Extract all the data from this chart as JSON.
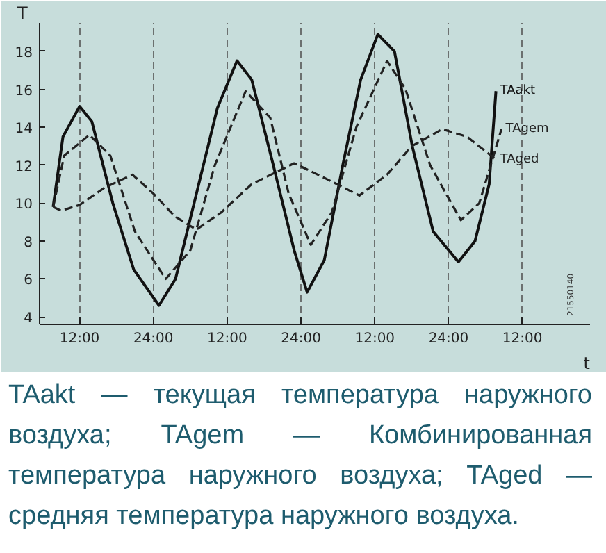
{
  "chart_data": {
    "type": "line",
    "xlabel": "t",
    "ylabel": "T",
    "x": [
      "2000-01-01T07:42",
      "2000-01-01T09:18",
      "2000-01-01T12:00",
      "2000-01-01T14:00",
      "2000-01-01T17:24",
      "2000-01-01T20:48",
      "2000-01-02T00:54",
      "2000-01-02T03:36",
      "2000-01-02T07:00",
      "2000-01-02T10:24",
      "2000-01-02T13:36",
      "2000-01-02T16:00",
      "2000-01-02T19:30",
      "2000-01-02T22:54",
      "2000-01-03T01:00",
      "2000-01-03T03:48",
      "2000-01-03T06:48",
      "2000-01-03T09:42",
      "2000-01-03T12:30",
      "2000-01-03T15:12",
      "2000-01-03T18:06",
      "2000-01-03T21:30",
      "2000-01-04T01:36",
      "2000-01-04T04:18",
      "2000-01-04T06:36",
      "2000-01-04T07:42"
    ],
    "series": [
      {
        "name": "TAakt",
        "color": "#111111",
        "line_style": "solid",
        "values": [
          9.8,
          13.5,
          15.1,
          14.3,
          10,
          6.5,
          4.6,
          6,
          10.5,
          15,
          17.5,
          16.5,
          12,
          7.5,
          5.3,
          7,
          12,
          16.5,
          18.9,
          18,
          13,
          8.5,
          6.9,
          8,
          11,
          15.9
        ]
      },
      {
        "name": "TAgem",
        "color": "#222222",
        "line_style": "dashed",
        "x": [
          "2000-01-01T07:42",
          "2000-01-01T09:30",
          "2000-01-01T13:36",
          "2000-01-01T17:00",
          "2000-01-01T21:00",
          "2000-01-02T02:00",
          "2000-01-02T06:00",
          "2000-01-02T10:00",
          "2000-01-02T15:00",
          "2000-01-02T19:00",
          "2000-01-02T22:00",
          "2000-01-03T01:36",
          "2000-01-03T05:00",
          "2000-01-03T09:00",
          "2000-01-03T14:00",
          "2000-01-03T17:00",
          "2000-01-03T21:00",
          "2000-01-04T02:00",
          "2000-01-04T05:00",
          "2000-01-04T08:36"
        ],
        "values": [
          9.8,
          12.5,
          13.6,
          12.5,
          8.5,
          6,
          7.5,
          12,
          15.9,
          14.5,
          10.5,
          7.8,
          9.5,
          14,
          17.5,
          16,
          12,
          9.1,
          10,
          13.9
        ]
      },
      {
        "name": "TAged",
        "color": "#222222",
        "line_style": "dashed",
        "x": [
          "2000-01-01T07:42",
          "2000-01-01T09:00",
          "2000-01-01T12:00",
          "2000-01-01T16:00",
          "2000-01-01T20:36",
          "2000-01-02T00:00",
          "2000-01-02T03:30",
          "2000-01-02T07:00",
          "2000-01-02T11:00",
          "2000-01-02T16:00",
          "2000-01-02T22:54",
          "2000-01-03T04:00",
          "2000-01-03T09:30",
          "2000-01-03T14:00",
          "2000-01-03T18:00",
          "2000-01-03T23:00",
          "2000-01-04T03:00",
          "2000-01-04T07:42"
        ],
        "values": [
          9.8,
          9.6,
          9.9,
          10.8,
          11.5,
          10.5,
          9.3,
          8.6,
          9.5,
          11,
          12.1,
          11.3,
          10.4,
          11.5,
          13,
          13.9,
          13.5,
          12.3
        ]
      }
    ],
    "xlim": [
      "2000-01-01T05:30",
      "2000-01-04T23:00"
    ],
    "ylim": [
      3.6,
      19.5
    ],
    "xticks": [
      {
        "value": "2000-01-01T12:00",
        "label": "12:00"
      },
      {
        "value": "2000-01-02T00:00",
        "label": "24:00"
      },
      {
        "value": "2000-01-02T12:00",
        "label": "12:00"
      },
      {
        "value": "2000-01-03T00:00",
        "label": "24:00"
      },
      {
        "value": "2000-01-03T12:00",
        "label": "12:00"
      },
      {
        "value": "2000-01-04T00:00",
        "label": "24:00"
      },
      {
        "value": "2000-01-04T12:00",
        "label": "12:00"
      }
    ],
    "yticks": [
      4,
      6,
      8,
      10,
      12,
      14,
      16,
      18
    ],
    "grid": "x",
    "annotations": [
      "TAakt — текущая температура наружного воздуха; TAgem — Комбинированная температура наружного воздуха; TAged — средняя температура наружного воздуха.",
      "21550140"
    ]
  }
}
